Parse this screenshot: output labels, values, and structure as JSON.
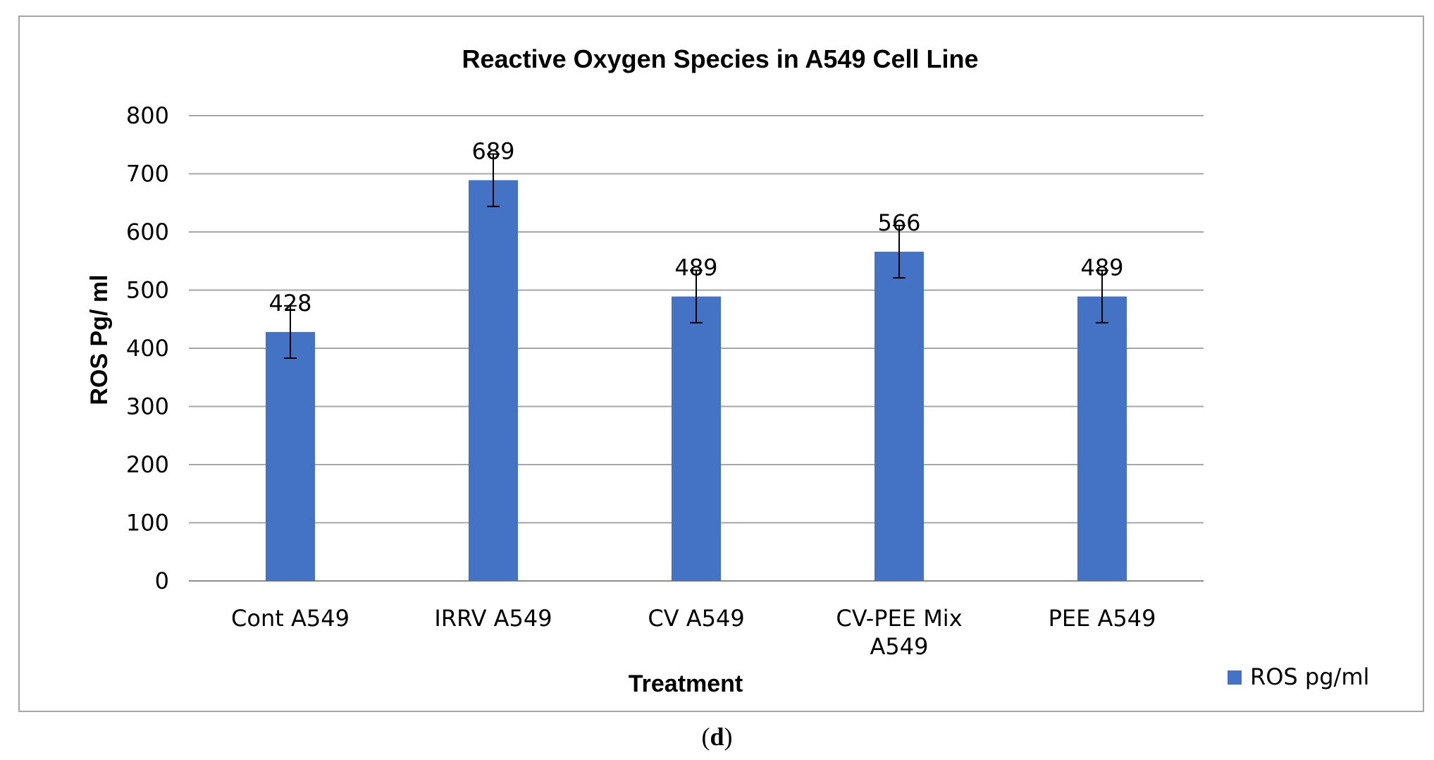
{
  "chart_data": {
    "type": "bar",
    "title": "Reactive Oxygen Species in A549 Cell Line",
    "xlabel": "Treatment",
    "ylabel": "ROS Pg/ ml",
    "ylim": [
      0,
      800
    ],
    "yticks": [
      0,
      100,
      200,
      300,
      400,
      500,
      600,
      700,
      800
    ],
    "grid": true,
    "legend_position": "bottom-right",
    "categories": [
      [
        "Cont A549"
      ],
      [
        "IRRV A549"
      ],
      [
        "CV A549"
      ],
      [
        "CV-PEE Mix",
        "A549"
      ],
      [
        "PEE A549"
      ]
    ],
    "series": [
      {
        "name": "ROS pg/ml",
        "color": "#4472c4",
        "values": [
          428,
          689,
          489,
          566,
          489
        ],
        "error": [
          45,
          45,
          45,
          45,
          45
        ]
      }
    ]
  },
  "caption": {
    "open": "(",
    "letter": "d",
    "close": ")"
  }
}
